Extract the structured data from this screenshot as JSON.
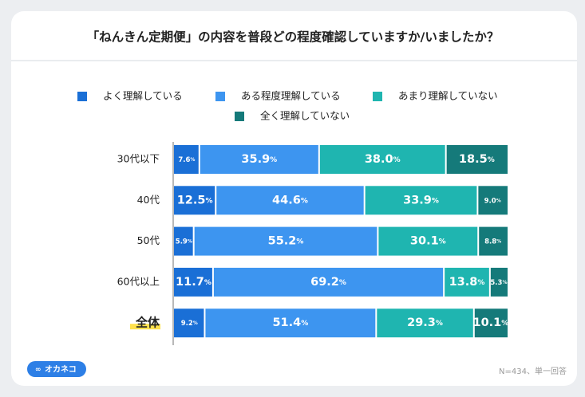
{
  "chart_data": {
    "type": "stacked_bar_horizontal",
    "title": "「ねんきん定期便」の内容を普段どの程度確認していますか/いましたか？",
    "categories": [
      "30代以下",
      "40代",
      "50代",
      "60代以上",
      "全体"
    ],
    "series": [
      {
        "name": "よく理解している",
        "color": "#1a6fd6",
        "values": [
          7.6,
          12.5,
          5.9,
          11.7,
          9.2
        ],
        "value_labels": [
          "7.6%",
          "12.5%",
          "5.9%",
          "11.7%",
          "9.2%"
        ]
      },
      {
        "name": "ある程度理解している",
        "color": "#3d95f0",
        "values": [
          35.9,
          44.6,
          55.2,
          69.2,
          51.4
        ],
        "value_labels": [
          "35.9%",
          "44.6%",
          "55.2%",
          "69.2%",
          "51.4%"
        ]
      },
      {
        "name": "あまり理解していない",
        "color": "#1fb5b0",
        "values": [
          38.0,
          33.9,
          30.1,
          13.8,
          29.3
        ],
        "value_labels": [
          "38.0%",
          "33.9%",
          "30.1%",
          "13.8%",
          "29.3%"
        ]
      },
      {
        "name": "全く理解していない",
        "color": "#157a7a",
        "values": [
          18.5,
          9.0,
          8.8,
          5.3,
          10.1
        ],
        "value_labels": [
          "18.5%",
          "9.0%",
          "8.8%",
          "5.3%",
          "10.1%"
        ]
      }
    ],
    "xlim": [
      0,
      100
    ],
    "note": "N=434、単一回答",
    "logo": "オカネコ"
  }
}
